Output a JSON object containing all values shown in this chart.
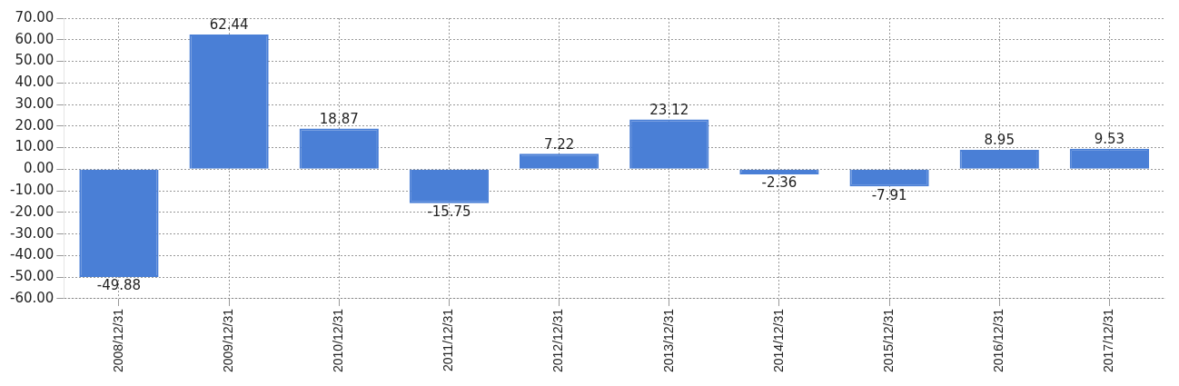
{
  "chart_data": {
    "type": "bar",
    "categories": [
      "2008/12/31",
      "2009/12/31",
      "2010/12/31",
      "2011/12/31",
      "2012/12/31",
      "2013/12/31",
      "2014/12/31",
      "2015/12/31",
      "2016/12/31",
      "2017/12/31"
    ],
    "values": [
      -49.88,
      62.44,
      18.87,
      -15.75,
      7.22,
      23.12,
      -2.36,
      -7.91,
      8.95,
      9.53
    ],
    "color": "#4a7fd6",
    "ylim": [
      -60,
      70
    ],
    "yticks": [
      {
        "value": -60,
        "label": "-60.00"
      },
      {
        "value": -50,
        "label": "-50.00"
      },
      {
        "value": -40,
        "label": "-40.00"
      },
      {
        "value": -30,
        "label": "-30.00"
      },
      {
        "value": -20,
        "label": "-20.00"
      },
      {
        "value": -10,
        "label": "-10.00"
      },
      {
        "value": 0,
        "label": "0.00"
      },
      {
        "value": 10,
        "label": "10.00"
      },
      {
        "value": 20,
        "label": "20.00"
      },
      {
        "value": 30,
        "label": "30.00"
      },
      {
        "value": 40,
        "label": "40.00"
      },
      {
        "value": 50,
        "label": "50.00"
      },
      {
        "value": 60,
        "label": "60.00"
      },
      {
        "value": 70,
        "label": "70.00"
      }
    ],
    "grid": true,
    "data_labels": true
  }
}
